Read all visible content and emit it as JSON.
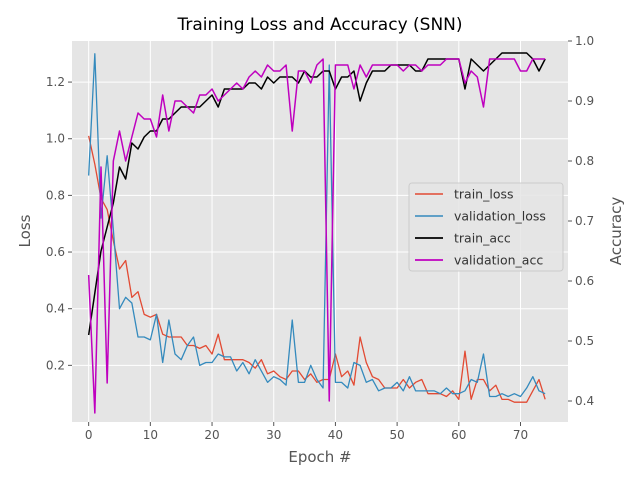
{
  "chart_data": {
    "type": "line",
    "title": "Training Loss and Accuracy (SNN)",
    "xlabel": "Epoch #",
    "ylabel": "Loss",
    "ylabel_right": "Accuracy",
    "xlim": [
      -2.7,
      77.7
    ],
    "ylim": [
      0.0,
      1.345
    ],
    "ylim_right": [
      0.365,
      1.0
    ],
    "xticks": [
      0,
      10,
      20,
      30,
      40,
      50,
      60,
      70
    ],
    "yticks": [
      0.2,
      0.4,
      0.6,
      0.8,
      1.0,
      1.2
    ],
    "yticks_right": [
      0.4,
      0.5,
      0.6,
      0.7,
      0.8,
      0.9,
      1.0
    ],
    "grid": true,
    "legend_position": "center-right",
    "series": [
      {
        "name": "train_loss",
        "axis": "left",
        "color": "#E24A33",
        "values": [
          1.01,
          0.91,
          0.79,
          0.75,
          0.64,
          0.54,
          0.57,
          0.44,
          0.46,
          0.38,
          0.37,
          0.38,
          0.31,
          0.3,
          0.3,
          0.3,
          0.27,
          0.27,
          0.26,
          0.27,
          0.24,
          0.31,
          0.22,
          0.22,
          0.22,
          0.22,
          0.21,
          0.19,
          0.22,
          0.17,
          0.18,
          0.16,
          0.15,
          0.18,
          0.18,
          0.15,
          0.17,
          0.14,
          0.15,
          0.15,
          0.24,
          0.16,
          0.18,
          0.13,
          0.3,
          0.21,
          0.16,
          0.15,
          0.12,
          0.12,
          0.12,
          0.15,
          0.12,
          0.14,
          0.15,
          0.1,
          0.1,
          0.1,
          0.09,
          0.11,
          0.08,
          0.25,
          0.08,
          0.15,
          0.15,
          0.11,
          0.13,
          0.08,
          0.08,
          0.07,
          0.07,
          0.07,
          0.11,
          0.15,
          0.08
        ]
      },
      {
        "name": "validation_loss",
        "axis": "left",
        "color": "#348ABD",
        "values": [
          0.87,
          1.3,
          0.72,
          0.94,
          0.68,
          0.4,
          0.44,
          0.42,
          0.3,
          0.3,
          0.29,
          0.38,
          0.21,
          0.36,
          0.24,
          0.22,
          0.27,
          0.3,
          0.2,
          0.21,
          0.21,
          0.24,
          0.23,
          0.23,
          0.18,
          0.21,
          0.17,
          0.22,
          0.18,
          0.14,
          0.16,
          0.15,
          0.13,
          0.36,
          0.14,
          0.14,
          0.2,
          0.15,
          0.12,
          1.26,
          0.14,
          0.14,
          0.12,
          0.21,
          0.2,
          0.14,
          0.15,
          0.11,
          0.12,
          0.12,
          0.14,
          0.11,
          0.16,
          0.11,
          0.11,
          0.11,
          0.11,
          0.1,
          0.12,
          0.1,
          0.1,
          0.11,
          0.15,
          0.14,
          0.24,
          0.09,
          0.09,
          0.1,
          0.09,
          0.1,
          0.09,
          0.12,
          0.16,
          0.11,
          0.1
        ]
      },
      {
        "name": "train_acc",
        "axis": "right",
        "color": "#000000",
        "values": [
          0.51,
          0.58,
          0.65,
          0.69,
          0.73,
          0.79,
          0.77,
          0.83,
          0.82,
          0.84,
          0.85,
          0.85,
          0.87,
          0.87,
          0.88,
          0.89,
          0.89,
          0.89,
          0.89,
          0.9,
          0.91,
          0.89,
          0.92,
          0.92,
          0.92,
          0.92,
          0.93,
          0.93,
          0.92,
          0.94,
          0.93,
          0.94,
          0.94,
          0.94,
          0.93,
          0.95,
          0.94,
          0.94,
          0.95,
          0.95,
          0.92,
          0.94,
          0.94,
          0.95,
          0.9,
          0.93,
          0.95,
          0.95,
          0.95,
          0.96,
          0.96,
          0.96,
          0.96,
          0.95,
          0.95,
          0.97,
          0.97,
          0.97,
          0.97,
          0.97,
          0.97,
          0.92,
          0.97,
          0.96,
          0.95,
          0.96,
          0.97,
          0.98,
          0.98,
          0.98,
          0.98,
          0.98,
          0.97,
          0.95,
          0.97
        ]
      },
      {
        "name": "validation_acc",
        "axis": "right",
        "color": "#BF00BF",
        "values": [
          0.61,
          0.38,
          0.79,
          0.43,
          0.8,
          0.85,
          0.8,
          0.84,
          0.88,
          0.87,
          0.87,
          0.84,
          0.91,
          0.85,
          0.9,
          0.9,
          0.89,
          0.88,
          0.91,
          0.91,
          0.92,
          0.9,
          0.91,
          0.92,
          0.93,
          0.92,
          0.94,
          0.95,
          0.94,
          0.96,
          0.95,
          0.95,
          0.96,
          0.85,
          0.95,
          0.95,
          0.93,
          0.96,
          0.97,
          0.4,
          0.96,
          0.96,
          0.96,
          0.92,
          0.96,
          0.94,
          0.96,
          0.96,
          0.96,
          0.96,
          0.96,
          0.95,
          0.96,
          0.96,
          0.95,
          0.96,
          0.96,
          0.96,
          0.97,
          0.97,
          0.97,
          0.93,
          0.95,
          0.94,
          0.89,
          0.97,
          0.97,
          0.97,
          0.97,
          0.97,
          0.95,
          0.95,
          0.97,
          0.97,
          0.97
        ]
      }
    ]
  }
}
